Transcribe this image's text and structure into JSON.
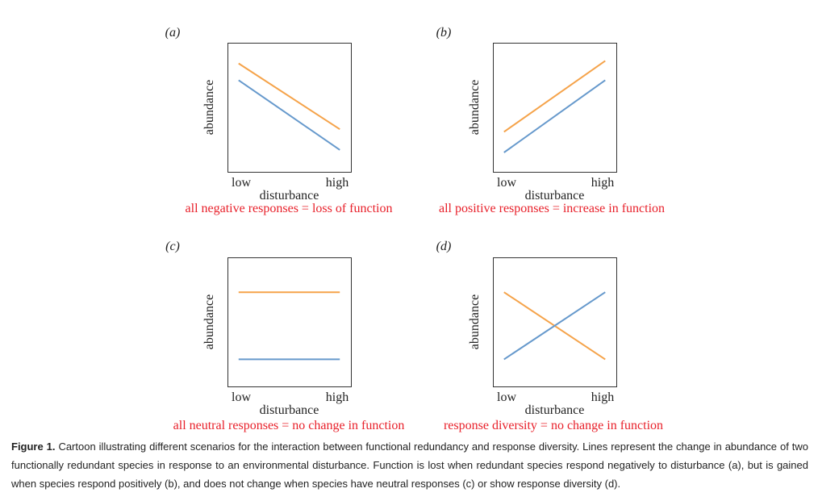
{
  "colors": {
    "orange_series": "#f5a34a",
    "blue_series": "#6699cc",
    "red_text": "#e8202a",
    "frame": "#333333"
  },
  "chart_data": [
    {
      "type": "line",
      "panel": "(a)",
      "xlabel": "disturbance",
      "ylabel": "abundance",
      "x_ticks": [
        "low",
        "high"
      ],
      "x": [
        "low",
        "high"
      ],
      "series": [
        {
          "color": "orange",
          "values": [
            0.84,
            0.33
          ]
        },
        {
          "color": "blue",
          "values": [
            0.71,
            0.17
          ]
        }
      ],
      "ylim": [
        0,
        1
      ],
      "caption": "all negative responses = loss of function"
    },
    {
      "type": "line",
      "panel": "(b)",
      "xlabel": "disturbance",
      "ylabel": "abundance",
      "x_ticks": [
        "low",
        "high"
      ],
      "x": [
        "low",
        "high"
      ],
      "series": [
        {
          "color": "orange",
          "values": [
            0.31,
            0.86
          ]
        },
        {
          "color": "blue",
          "values": [
            0.15,
            0.71
          ]
        }
      ],
      "ylim": [
        0,
        1
      ],
      "caption": "all positive responses = increase in function"
    },
    {
      "type": "line",
      "panel": "(c)",
      "xlabel": "disturbance",
      "ylabel": "abundance",
      "x_ticks": [
        "low",
        "high"
      ],
      "x": [
        "low",
        "high"
      ],
      "series": [
        {
          "color": "orange",
          "values": [
            0.73,
            0.73
          ]
        },
        {
          "color": "blue",
          "values": [
            0.21,
            0.21
          ]
        }
      ],
      "ylim": [
        0,
        1
      ],
      "caption": "all neutral responses = no change in function"
    },
    {
      "type": "line",
      "panel": "(d)",
      "xlabel": "disturbance",
      "ylabel": "abundance",
      "x_ticks": [
        "low",
        "high"
      ],
      "x": [
        "low",
        "high"
      ],
      "series": [
        {
          "color": "orange",
          "values": [
            0.73,
            0.21
          ]
        },
        {
          "color": "blue",
          "values": [
            0.21,
            0.73
          ]
        }
      ],
      "ylim": [
        0,
        1
      ],
      "caption": "response diversity = no change in function"
    }
  ],
  "figure_caption": {
    "label": "Figure 1.",
    "text": "Cartoon illustrating different scenarios for the interaction between functional redundancy and response diversity. Lines represent the change in abundance of two functionally redundant species in response to an environmental disturbance. Function is lost when redundant species respond negatively to disturbance (a), but is gained when species respond positively (b), and does not change when species have neutral responses (c) or show response diversity (d)."
  }
}
